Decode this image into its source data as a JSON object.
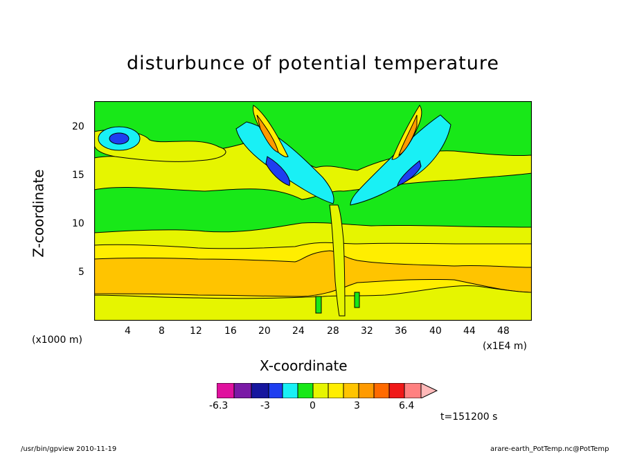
{
  "chart_data": {
    "type": "heatmap",
    "title": "disturbunce of potential temperature",
    "xlabel": "X-coordinate",
    "ylabel": "Z-coordinate",
    "x_unit_note_left": "(x1000 m)",
    "x_unit_note_right": "(x1E4 m)",
    "xlim": [
      0,
      51
    ],
    "ylim": [
      0,
      23
    ],
    "xticks": [
      "4",
      "8",
      "12",
      "16",
      "20",
      "24",
      "28",
      "32",
      "36",
      "40",
      "44",
      "48"
    ],
    "yticks": [
      "5",
      "10",
      "15",
      "20"
    ],
    "time_label": "t=151200 s",
    "colorbar": {
      "tick_labels": [
        "-6.3",
        "-3",
        "0",
        "3",
        "6.4"
      ],
      "colors": [
        "#e0119e",
        "#7a1aa6",
        "#16169e",
        "#1e3ef0",
        "#19f0f5",
        "#18e818",
        "#e6f500",
        "#ffee00",
        "#ffc400",
        "#ff9a00",
        "#ff6a00",
        "#f01818",
        "#ff8080",
        "#ffb9b9"
      ]
    }
  },
  "footer": {
    "left": "/usr/bin/gpview  2010-11-19",
    "right": "arare-earth_PotTemp.nc@PotTemp"
  },
  "colors": {
    "green": "#18e818",
    "yellow_light": "#e6f500",
    "yellow": "#ffee00",
    "orange_light": "#ffc400",
    "orange": "#ff9a00",
    "cyan": "#19f0f5",
    "blue": "#1e3ef0",
    "navy": "#16169e"
  }
}
